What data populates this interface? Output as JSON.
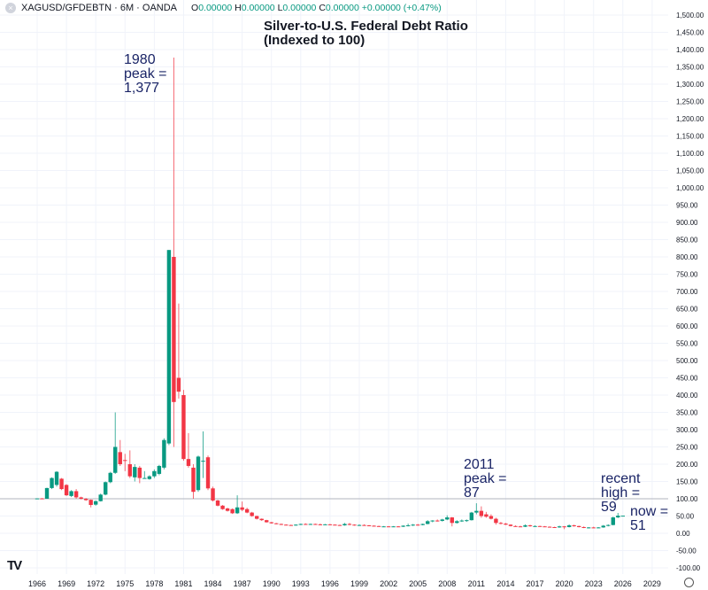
{
  "header": {
    "symbol": "XAGUSD/GFDEBTN · 6M · OANDA",
    "o_label": "O",
    "o": "0.00000",
    "h_label": "H",
    "h": "0.00000",
    "l_label": "L",
    "l": "0.00000",
    "c_label": "C",
    "c": "0.00000",
    "change": "+0.00000 (+0.47%)"
  },
  "annotations": {
    "title": "Silver-to-U.S. Federal Debt Ratio\n(Indexed to 100)",
    "peak1980": "1980\npeak =\n1,377",
    "peak2011": "2011\npeak =\n87",
    "recent": "recent\nhigh =\n59",
    "now": "now =\n51"
  },
  "colors": {
    "up": "#089981",
    "down": "#f23645",
    "grid": "#f0f3fa",
    "priceline": "#b2b5be",
    "annotation": "#1a2466"
  },
  "icons": {
    "logo": "tradingview-logo",
    "settings": "gear-icon"
  },
  "chart_data": {
    "type": "candlestick",
    "title": "Silver-to-U.S. Federal Debt Ratio (Indexed to 100)",
    "interval": "6M",
    "ylim": [
      -100,
      1500
    ],
    "yticks_step": 50,
    "xlim": [
      1965,
      2031
    ],
    "xticks": [
      1966,
      1969,
      1972,
      1975,
      1978,
      1981,
      1984,
      1987,
      1990,
      1993,
      1996,
      1999,
      2002,
      2005,
      2008,
      2011,
      2014,
      2017,
      2020,
      2023,
      2026,
      2029
    ],
    "reference_line": 100,
    "grid": true,
    "candles_columns": [
      "time",
      "open",
      "high",
      "low",
      "close"
    ],
    "candles": [
      [
        1966.0,
        100,
        101,
        99,
        101
      ],
      [
        1966.5,
        101,
        102,
        99,
        100
      ],
      [
        1967.0,
        100,
        132,
        100,
        131
      ],
      [
        1967.5,
        131,
        162,
        128,
        160
      ],
      [
        1968.0,
        140,
        180,
        135,
        178
      ],
      [
        1968.5,
        158,
        160,
        125,
        128
      ],
      [
        1969.0,
        140,
        142,
        108,
        110
      ],
      [
        1969.5,
        108,
        125,
        105,
        122
      ],
      [
        1970.0,
        122,
        128,
        100,
        104
      ],
      [
        1970.5,
        104,
        106,
        98,
        100
      ],
      [
        1971.0,
        100,
        102,
        94,
        96
      ],
      [
        1971.5,
        97,
        98,
        75,
        82
      ],
      [
        1972.0,
        83,
        95,
        80,
        93
      ],
      [
        1972.5,
        93,
        115,
        92,
        112
      ],
      [
        1973.0,
        112,
        150,
        110,
        148
      ],
      [
        1973.5,
        148,
        178,
        145,
        175
      ],
      [
        1974.0,
        175,
        350,
        172,
        250
      ],
      [
        1974.5,
        235,
        270,
        195,
        200
      ],
      [
        1975.0,
        212,
        230,
        180,
        210
      ],
      [
        1975.5,
        200,
        240,
        160,
        165
      ],
      [
        1976.0,
        162,
        200,
        150,
        192
      ],
      [
        1976.5,
        190,
        195,
        145,
        160
      ],
      [
        1977.0,
        160,
        180,
        158,
        160
      ],
      [
        1977.5,
        157,
        168,
        155,
        165
      ],
      [
        1978.0,
        165,
        185,
        160,
        180
      ],
      [
        1978.5,
        172,
        198,
        168,
        195
      ],
      [
        1979.0,
        190,
        275,
        185,
        270
      ],
      [
        1979.5,
        260,
        820,
        255,
        820
      ],
      [
        1980.0,
        800,
        1377,
        250,
        380
      ],
      [
        1980.5,
        450,
        665,
        390,
        410
      ],
      [
        1981.0,
        400,
        415,
        210,
        215
      ],
      [
        1981.5,
        215,
        290,
        190,
        195
      ],
      [
        1982.0,
        190,
        200,
        100,
        120
      ],
      [
        1982.5,
        125,
        225,
        120,
        222
      ],
      [
        1983.0,
        210,
        295,
        160,
        210
      ],
      [
        1983.5,
        220,
        225,
        125,
        130
      ],
      [
        1984.0,
        130,
        135,
        92,
        95
      ],
      [
        1984.5,
        95,
        97,
        78,
        80
      ],
      [
        1985.0,
        80,
        82,
        68,
        70
      ],
      [
        1985.5,
        72,
        74,
        63,
        65
      ],
      [
        1986.0,
        70,
        72,
        56,
        58
      ],
      [
        1986.5,
        58,
        110,
        56,
        75
      ],
      [
        1987.0,
        75,
        92,
        64,
        68
      ],
      [
        1987.5,
        70,
        74,
        58,
        60
      ],
      [
        1988.0,
        60,
        62,
        48,
        50
      ],
      [
        1988.5,
        50,
        51,
        40,
        42
      ],
      [
        1989.0,
        42,
        43,
        36,
        38
      ],
      [
        1989.5,
        38,
        39,
        31,
        32
      ],
      [
        1990.0,
        32,
        33,
        28,
        29
      ],
      [
        1990.5,
        29,
        30,
        26,
        27
      ],
      [
        1991.0,
        27,
        28,
        24,
        25
      ],
      [
        1991.5,
        25,
        26,
        23,
        24
      ],
      [
        1992.0,
        24,
        25,
        22,
        23
      ],
      [
        1992.5,
        23,
        26,
        22,
        25
      ],
      [
        1993.0,
        25,
        28,
        24,
        27
      ],
      [
        1993.5,
        27,
        29,
        25,
        26
      ],
      [
        1994.0,
        26,
        28,
        25,
        27
      ],
      [
        1994.5,
        27,
        28,
        25,
        26
      ],
      [
        1995.0,
        26,
        28,
        24,
        25
      ],
      [
        1995.5,
        25,
        27,
        24,
        26
      ],
      [
        1996.0,
        26,
        27,
        24,
        25
      ],
      [
        1996.5,
        25,
        26,
        23,
        24
      ],
      [
        1997.0,
        24,
        25,
        22,
        23
      ],
      [
        1997.5,
        23,
        30,
        22,
        27
      ],
      [
        1998.0,
        27,
        30,
        23,
        25
      ],
      [
        1998.5,
        25,
        26,
        22,
        23
      ],
      [
        1999.0,
        23,
        26,
        22,
        24
      ],
      [
        1999.5,
        24,
        26,
        22,
        23
      ],
      [
        2000.0,
        23,
        24,
        21,
        22
      ],
      [
        2000.5,
        22,
        23,
        20,
        21
      ],
      [
        2001.0,
        21,
        22,
        19,
        20
      ],
      [
        2001.5,
        20,
        21,
        19,
        20
      ],
      [
        2002.0,
        20,
        21,
        18,
        19
      ],
      [
        2002.5,
        19,
        21,
        18,
        20
      ],
      [
        2003.0,
        20,
        21,
        18,
        19
      ],
      [
        2003.5,
        19,
        23,
        18,
        22
      ],
      [
        2004.0,
        22,
        28,
        20,
        23
      ],
      [
        2004.5,
        23,
        27,
        21,
        25
      ],
      [
        2005.0,
        25,
        27,
        22,
        24
      ],
      [
        2005.5,
        24,
        28,
        23,
        27
      ],
      [
        2006.0,
        27,
        38,
        26,
        35
      ],
      [
        2006.5,
        35,
        38,
        32,
        37
      ],
      [
        2007.0,
        37,
        40,
        34,
        36
      ],
      [
        2007.5,
        36,
        42,
        34,
        40
      ],
      [
        2008.0,
        40,
        52,
        38,
        46
      ],
      [
        2008.5,
        46,
        47,
        20,
        30
      ],
      [
        2009.0,
        30,
        38,
        28,
        35
      ],
      [
        2009.5,
        35,
        40,
        33,
        37
      ],
      [
        2010.0,
        37,
        40,
        33,
        38
      ],
      [
        2010.5,
        38,
        62,
        37,
        60
      ],
      [
        2011.0,
        60,
        87,
        55,
        65
      ],
      [
        2011.5,
        65,
        78,
        45,
        50
      ],
      [
        2012.0,
        55,
        62,
        45,
        48
      ],
      [
        2012.5,
        50,
        55,
        40,
        42
      ],
      [
        2013.0,
        42,
        45,
        25,
        30
      ],
      [
        2013.5,
        30,
        33,
        26,
        28
      ],
      [
        2014.0,
        28,
        30,
        24,
        25
      ],
      [
        2014.5,
        25,
        26,
        20,
        21
      ],
      [
        2015.0,
        21,
        23,
        19,
        20
      ],
      [
        2015.5,
        20,
        22,
        18,
        19
      ],
      [
        2016.0,
        19,
        26,
        18,
        23
      ],
      [
        2016.5,
        23,
        25,
        19,
        21
      ],
      [
        2017.0,
        21,
        23,
        19,
        21
      ],
      [
        2017.5,
        21,
        22,
        19,
        20
      ],
      [
        2018.0,
        20,
        21,
        18,
        19
      ],
      [
        2018.5,
        19,
        20,
        17,
        18
      ],
      [
        2019.0,
        18,
        19,
        16,
        17
      ],
      [
        2019.5,
        17,
        22,
        16,
        20
      ],
      [
        2020.0,
        20,
        21,
        12,
        18
      ],
      [
        2020.5,
        18,
        26,
        17,
        23
      ],
      [
        2021.0,
        23,
        25,
        19,
        21
      ],
      [
        2021.5,
        21,
        22,
        17,
        18
      ],
      [
        2022.0,
        18,
        20,
        15,
        16
      ],
      [
        2022.5,
        16,
        18,
        14,
        17
      ],
      [
        2023.0,
        17,
        19,
        15,
        16
      ],
      [
        2023.5,
        16,
        18,
        15,
        17
      ],
      [
        2024.0,
        17,
        24,
        16,
        22
      ],
      [
        2024.5,
        22,
        26,
        20,
        24
      ],
      [
        2025.0,
        24,
        48,
        23,
        46
      ],
      [
        2025.5,
        46,
        59,
        44,
        51
      ],
      [
        2026.0,
        51,
        51,
        51,
        51
      ]
    ]
  }
}
